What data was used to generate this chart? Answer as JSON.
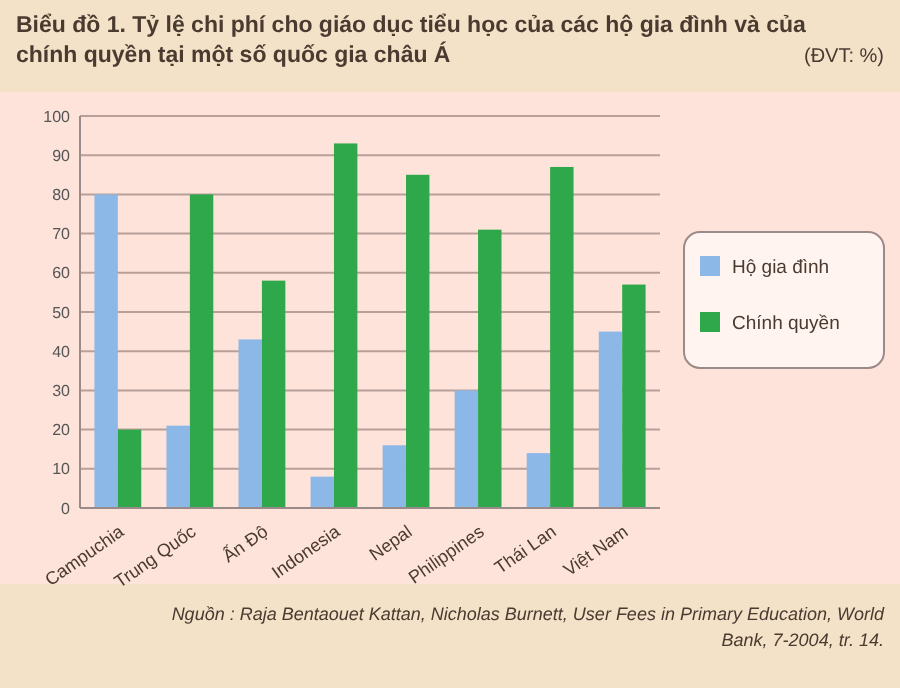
{
  "chart_data": {
    "type": "bar",
    "title": "Biểu đồ 1. Tỷ lệ chi phí cho giáo dục tiểu học của các hộ gia đình và của chính quyền tại một số quốc gia châu Á",
    "subtitle": "(ĐVT: %)",
    "categories": [
      "Campuchia",
      "Trung Quốc",
      "Ấn Độ",
      "Indonesia",
      "Nepal",
      "Philippines",
      "Thái Lan",
      "Việt Nam"
    ],
    "series": [
      {
        "name": "Hộ gia đình",
        "color": "#8cb8e8",
        "values": [
          80,
          21,
          43,
          8,
          16,
          30,
          14,
          45
        ]
      },
      {
        "name": "Chính quyền",
        "color": "#2ea84a",
        "values": [
          20,
          80,
          58,
          93,
          85,
          71,
          87,
          57
        ]
      }
    ],
    "ylim": [
      0,
      100
    ],
    "yticks": [
      0,
      10,
      20,
      30,
      40,
      50,
      60,
      70,
      80,
      90,
      100
    ],
    "grid": "y",
    "legend": "right",
    "annotations": [
      "Nguồn : Raja Bentaouet Kattan, Nicholas Burnett, User Fees in Primary Education, World Bank, 7-2004, tr. 14."
    ]
  }
}
